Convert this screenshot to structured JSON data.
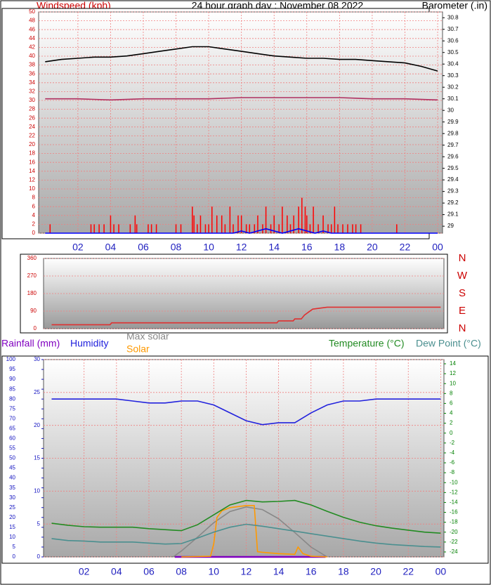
{
  "chart_data": [
    {
      "type": "line",
      "title": "24 hour graph day : November 08 2022",
      "ylabel": "Windspeed (kph)",
      "y2label": "Barometer (.in)",
      "xlim": [
        -0.4,
        24.3
      ],
      "xticks": [
        {
          "value": 2,
          "label": "02"
        },
        {
          "value": 4,
          "label": "04"
        },
        {
          "value": 6,
          "label": "06"
        },
        {
          "value": 8,
          "label": "08"
        },
        10,
        12,
        14,
        16,
        18,
        20,
        22,
        {
          "value": 24,
          "label": "00"
        }
      ],
      "ylim": [
        0,
        50
      ],
      "yticks": [
        0,
        2,
        4,
        6,
        8,
        10,
        12,
        14,
        16,
        18,
        20,
        22,
        24,
        26,
        28,
        30,
        32,
        34,
        36,
        38,
        40,
        42,
        44,
        46,
        48,
        50
      ],
      "y2lim": [
        28.94,
        30.85
      ],
      "y2ticks": [
        29,
        29.1,
        29.2,
        29.3,
        29.4,
        29.5,
        29.6,
        29.7,
        29.8,
        29.9,
        30,
        30.1,
        30.2,
        30.3,
        30.4,
        30.5,
        30.6,
        30.7,
        30.8
      ],
      "grid": true,
      "series": [
        {
          "type": "bar",
          "color": "#ff0000",
          "x": [
            0.3,
            2.8,
            3,
            3.3,
            3.6,
            4,
            4.2,
            4.5,
            5.2,
            5.5,
            5.6,
            6.3,
            6.5,
            6.8,
            8,
            8.3,
            9,
            9.1,
            9.3,
            9.5,
            9.8,
            10,
            10.2,
            10.5,
            10.8,
            11,
            11.3,
            11.5,
            11.8,
            12,
            12.3,
            12.5,
            12.8,
            13,
            13.3,
            13.5,
            13.8,
            14,
            14.3,
            14.5,
            14.8,
            15,
            15.2,
            15.5,
            15.7,
            15.9,
            16,
            16.2,
            16.4,
            16.7,
            17,
            17.3,
            17.5,
            17.7,
            17.9,
            18.2,
            18.5,
            18.8,
            19,
            19.3,
            21.5
          ],
          "values": [
            2,
            2,
            2,
            2,
            2,
            4,
            2,
            2,
            2,
            4,
            2,
            2,
            2,
            2,
            2,
            2,
            6,
            4,
            2,
            4,
            2,
            2,
            6,
            4,
            4,
            2,
            6,
            2,
            4,
            4,
            2,
            2,
            2,
            4,
            2,
            6,
            2,
            4,
            2,
            6,
            4,
            2,
            4,
            6,
            8,
            6,
            4,
            2,
            6,
            2,
            4,
            2,
            2,
            6,
            2,
            2,
            2,
            2,
            2,
            2,
            2
          ]
        },
        {
          "color": "#0000ff",
          "x": [
            0,
            11.5,
            12,
            12.5,
            13,
            13.5,
            14,
            14.5,
            15,
            15.5,
            16,
            16.5,
            17,
            17.5,
            24
          ],
          "values": [
            0,
            0,
            0.5,
            0,
            0.5,
            1,
            0.5,
            0,
            0.5,
            1,
            0.5,
            0,
            0.5,
            0,
            0
          ]
        },
        {
          "axis": "y2",
          "color": "#000000",
          "x": [
            0,
            1,
            2,
            3,
            4,
            5,
            6,
            7,
            8,
            9,
            10,
            11,
            12,
            13,
            14,
            15,
            16,
            17,
            18,
            19,
            20,
            21,
            22,
            23,
            24
          ],
          "values": [
            30.42,
            30.44,
            30.45,
            30.46,
            30.46,
            30.47,
            30.49,
            30.51,
            30.53,
            30.55,
            30.55,
            30.53,
            30.51,
            30.49,
            30.47,
            30.46,
            30.45,
            30.45,
            30.44,
            30.44,
            30.43,
            30.42,
            30.41,
            30.38,
            30.34
          ]
        },
        {
          "axis": "y2",
          "color": "#b03060",
          "x": [
            0,
            2,
            4,
            6,
            8,
            10,
            12,
            14,
            16,
            18,
            20,
            22,
            24
          ],
          "values": [
            30.1,
            30.1,
            30.09,
            30.1,
            30.1,
            30.1,
            30.11,
            30.11,
            30.11,
            30.11,
            30.1,
            30.1,
            30.09
          ]
        }
      ]
    },
    {
      "type": "line",
      "xlim": [
        -0.5,
        24.2
      ],
      "ylim": [
        0,
        360
      ],
      "yticks": [
        0,
        90,
        180,
        270,
        360
      ],
      "y2lim": [
        0,
        360
      ],
      "y2ticks": [
        {
          "value": 360,
          "label": "N"
        },
        {
          "value": 270,
          "label": "W"
        },
        {
          "value": 180,
          "label": "S"
        },
        {
          "value": 90,
          "label": "E"
        },
        {
          "value": 0,
          "label": "N"
        }
      ],
      "grid": true,
      "series": [
        {
          "color": "#e03030",
          "x": [
            0,
            3.6,
            3.7,
            13.9,
            14,
            14.9,
            15,
            15.4,
            15.6,
            16.1,
            17,
            24
          ],
          "values": [
            20,
            20,
            30,
            30,
            40,
            40,
            50,
            50,
            70,
            100,
            110,
            110
          ]
        }
      ]
    },
    {
      "type": "line",
      "xlim": [
        -0.5,
        24.2
      ],
      "xticks": [
        {
          "value": 2,
          "label": "02"
        },
        {
          "value": 4,
          "label": "04"
        },
        {
          "value": 6,
          "label": "06"
        },
        {
          "value": 8,
          "label": "08"
        },
        10,
        12,
        14,
        16,
        18,
        20,
        22,
        {
          "value": 24,
          "label": "00"
        }
      ],
      "ylim": [
        0,
        30
      ],
      "yticks": [
        0,
        5,
        10,
        15,
        20,
        25,
        30
      ],
      "y2lim": [
        -25,
        14.85
      ],
      "y2ticks": [
        -24,
        -22,
        -20,
        -18,
        -16,
        -14,
        -12,
        -10,
        -8,
        -6,
        -4,
        -2,
        0,
        2,
        4,
        6,
        8,
        10,
        12,
        14
      ],
      "y3lim": [
        0,
        100
      ],
      "y3ticks": [
        0,
        5,
        10,
        15,
        20,
        25,
        30,
        35,
        40,
        45,
        50,
        55,
        60,
        65,
        70,
        75,
        80,
        85,
        90,
        95,
        100
      ],
      "grid": true,
      "series": [
        {
          "name": "Rainfall (mm)",
          "color": "#8000c0",
          "x": [
            7.6,
            16.9
          ],
          "values": [
            0,
            0
          ]
        },
        {
          "name": "Humidity",
          "axis": "y3",
          "color": "#2222dd",
          "x": [
            0,
            1,
            2,
            3,
            4,
            5,
            6,
            7,
            8,
            9,
            10,
            11,
            12,
            13,
            14,
            15,
            16,
            17,
            18,
            19,
            20,
            21,
            22,
            23,
            24
          ],
          "values": [
            80,
            80,
            80,
            80,
            80,
            79,
            78,
            78,
            79,
            79,
            77,
            73,
            69,
            67,
            68,
            68,
            73,
            77,
            79,
            79,
            80,
            80,
            80,
            80,
            80
          ]
        },
        {
          "name": "Max solar",
          "color": "#888888",
          "x": [
            7.5,
            8,
            9,
            10,
            11,
            12,
            13,
            14,
            15,
            16,
            17
          ],
          "values": [
            0,
            0.9,
            3,
            5.2,
            6.9,
            7.6,
            7.2,
            5.8,
            3.7,
            1.5,
            0
          ]
        },
        {
          "name": "Solar",
          "color": "#ff9900",
          "x": [
            8,
            9.8,
            10,
            10.2,
            10.5,
            11,
            12,
            12.5,
            12.7,
            13,
            14,
            15,
            15.2,
            15.5,
            16,
            17
          ],
          "values": [
            0,
            0.1,
            2,
            6,
            7,
            7.5,
            7.8,
            7.8,
            0.8,
            0.7,
            0.5,
            0.4,
            1.5,
            0.5,
            0.1,
            0
          ]
        },
        {
          "name": "Temperature (°C)",
          "axis": "y2",
          "color": "#228b22",
          "x": [
            0,
            1,
            2,
            3,
            4,
            5,
            6,
            7,
            8,
            9,
            10,
            11,
            12,
            13,
            14,
            15,
            16,
            17,
            18,
            19,
            20,
            21,
            22,
            23,
            24
          ],
          "values": [
            -18.2,
            -18.6,
            -18.9,
            -19,
            -19,
            -19,
            -19.3,
            -19.5,
            -19.7,
            -18.5,
            -16.5,
            -14.5,
            -13.6,
            -13.9,
            -13.8,
            -13.6,
            -14.5,
            -15.8,
            -17,
            -18,
            -18.7,
            -19.2,
            -19.6,
            -20,
            -20.2
          ]
        },
        {
          "name": "Dew Point (°C)",
          "axis": "y2",
          "color": "#4a8f8f",
          "x": [
            0,
            1,
            2,
            3,
            4,
            5,
            6,
            7,
            8,
            9,
            10,
            11,
            12,
            13,
            14,
            15,
            16,
            17,
            18,
            19,
            20,
            21,
            22,
            23,
            24
          ],
          "values": [
            -21.3,
            -21.7,
            -21.8,
            -22,
            -22,
            -22,
            -22.2,
            -22.4,
            -22.3,
            -21.2,
            -20,
            -19,
            -18.4,
            -18.8,
            -19.3,
            -19.8,
            -20.3,
            -20.8,
            -21.3,
            -21.8,
            -22.2,
            -22.5,
            -22.7,
            -22.9,
            -23
          ]
        }
      ]
    }
  ]
}
